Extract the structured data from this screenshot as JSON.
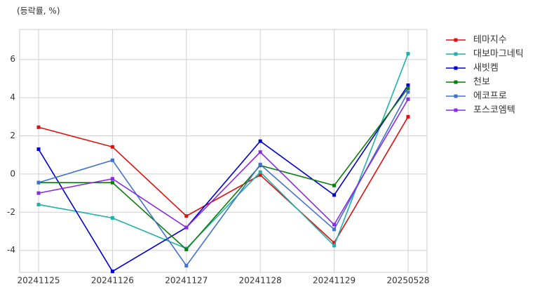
{
  "chart_data": {
    "type": "line",
    "y_label": "(등락률, %)",
    "categories": [
      "20241125",
      "20241126",
      "20241127",
      "20241128",
      "20241129",
      "20250528"
    ],
    "series": [
      {
        "name": "테마지수",
        "color": "#dd0f0f",
        "values": [
          2.45,
          1.42,
          -2.2,
          -0.05,
          -3.6,
          3.0
        ]
      },
      {
        "name": "대보마그네틱",
        "color": "#22b0aa",
        "values": [
          -1.6,
          -2.3,
          -3.9,
          0.1,
          -3.75,
          6.3
        ]
      },
      {
        "name": "새빗켐",
        "color": "#0000d0",
        "values": [
          1.3,
          -5.1,
          -2.8,
          1.72,
          -1.1,
          4.65
        ]
      },
      {
        "name": "천보",
        "color": "#0a7d0a",
        "values": [
          -0.45,
          -0.45,
          -3.95,
          0.45,
          -0.6,
          4.5
        ]
      },
      {
        "name": "에코프로",
        "color": "#4472c8",
        "values": [
          -0.45,
          0.72,
          -4.8,
          0.5,
          -2.9,
          4.3
        ]
      },
      {
        "name": "포스코엠텍",
        "color": "#8a2be2",
        "values": [
          -1.0,
          -0.25,
          -2.8,
          1.15,
          -2.65,
          3.92
        ]
      }
    ],
    "ylim": [
      -5.15,
      7.57
    ],
    "yticks": [
      -4,
      -2,
      0,
      2,
      4,
      6
    ],
    "grid": true,
    "legend": "outside-right"
  }
}
